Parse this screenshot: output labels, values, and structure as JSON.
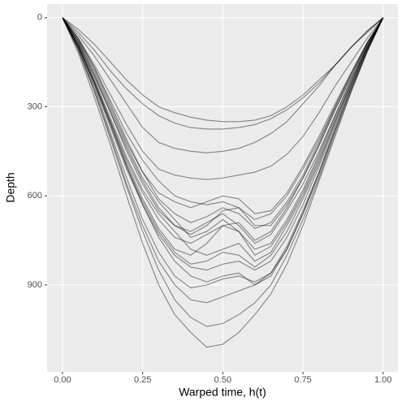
{
  "chart_data": {
    "type": "line",
    "x_label": "Warped time, h(t)",
    "y_label": "Depth",
    "x": [
      0,
      0.05,
      0.1,
      0.15,
      0.2,
      0.25,
      0.3,
      0.35,
      0.4,
      0.45,
      0.5,
      0.55,
      0.6,
      0.65,
      0.7,
      0.75,
      0.8,
      0.85,
      0.9,
      0.95,
      1
    ],
    "xlim": [
      -0.048,
      1.046
    ],
    "xticks": [
      {
        "value": 0,
        "label": "0.00"
      },
      {
        "value": 0.25,
        "label": "0.25"
      },
      {
        "value": 0.5,
        "label": "0.50"
      },
      {
        "value": 0.75,
        "label": "0.75"
      },
      {
        "value": 1,
        "label": "1.00"
      }
    ],
    "ylim": [
      -46,
      1193
    ],
    "y_reversed": true,
    "yticks": [
      0,
      300,
      600,
      900
    ],
    "grid": true,
    "color": "#000000",
    "opacity": 0.45,
    "series": [
      {
        "values": [
          0,
          40,
          90,
          150,
          210,
          260,
          300,
          320,
          335,
          345,
          350,
          350,
          345,
          330,
          300,
          260,
          210,
          160,
          100,
          50,
          0
        ]
      },
      {
        "values": [
          0,
          50,
          110,
          180,
          240,
          290,
          330,
          355,
          370,
          375,
          375,
          370,
          360,
          340,
          310,
          270,
          220,
          160,
          100,
          45,
          0
        ]
      },
      {
        "values": [
          0,
          60,
          130,
          210,
          290,
          370,
          420,
          440,
          450,
          455,
          450,
          440,
          420,
          390,
          350,
          290,
          230,
          160,
          100,
          45,
          0
        ]
      },
      {
        "values": [
          0,
          70,
          160,
          260,
          360,
          450,
          510,
          530,
          540,
          545,
          540,
          530,
          520,
          500,
          460,
          400,
          320,
          230,
          150,
          70,
          0
        ]
      },
      {
        "values": [
          0,
          90,
          200,
          320,
          450,
          560,
          650,
          700,
          720,
          690,
          660,
          700,
          760,
          730,
          650,
          560,
          450,
          330,
          210,
          100,
          0
        ]
      },
      {
        "values": [
          0,
          80,
          190,
          310,
          430,
          540,
          620,
          680,
          740,
          720,
          680,
          720,
          800,
          770,
          690,
          590,
          470,
          340,
          220,
          100,
          0
        ]
      },
      {
        "values": [
          0,
          100,
          220,
          350,
          480,
          590,
          680,
          740,
          760,
          730,
          700,
          690,
          750,
          720,
          640,
          540,
          430,
          310,
          200,
          90,
          0
        ]
      },
      {
        "values": [
          0,
          70,
          170,
          290,
          410,
          520,
          610,
          660,
          690,
          670,
          640,
          660,
          710,
          690,
          620,
          530,
          420,
          300,
          190,
          85,
          0
        ]
      },
      {
        "values": [
          0,
          90,
          210,
          340,
          470,
          580,
          660,
          720,
          780,
          800,
          780,
          760,
          820,
          790,
          700,
          600,
          480,
          350,
          220,
          100,
          0
        ]
      },
      {
        "values": [
          0,
          100,
          230,
          370,
          510,
          630,
          730,
          800,
          840,
          850,
          830,
          820,
          850,
          820,
          740,
          630,
          500,
          360,
          230,
          105,
          0
        ]
      },
      {
        "values": [
          0,
          110,
          250,
          400,
          560,
          700,
          820,
          900,
          950,
          960,
          940,
          920,
          900,
          860,
          780,
          660,
          530,
          380,
          240,
          110,
          0
        ]
      },
      {
        "values": [
          0,
          120,
          270,
          430,
          600,
          760,
          900,
          1000,
          1060,
          1110,
          1100,
          1060,
          1000,
          930,
          830,
          700,
          550,
          400,
          250,
          115,
          0
        ]
      },
      {
        "values": [
          0,
          110,
          250,
          410,
          570,
          720,
          850,
          950,
          1010,
          1040,
          1030,
          1000,
          960,
          900,
          800,
          680,
          540,
          390,
          250,
          115,
          0
        ]
      },
      {
        "values": [
          0,
          95,
          220,
          360,
          500,
          630,
          740,
          820,
          870,
          890,
          870,
          860,
          900,
          870,
          780,
          660,
          520,
          380,
          240,
          110,
          0
        ]
      },
      {
        "values": [
          0,
          85,
          195,
          320,
          440,
          550,
          640,
          700,
          730,
          700,
          650,
          640,
          700,
          700,
          630,
          540,
          430,
          310,
          200,
          90,
          0
        ]
      },
      {
        "values": [
          0,
          80,
          180,
          300,
          420,
          520,
          590,
          620,
          640,
          620,
          600,
          610,
          660,
          650,
          590,
          500,
          400,
          290,
          185,
          85,
          0
        ]
      },
      {
        "values": [
          0,
          95,
          215,
          350,
          490,
          610,
          710,
          780,
          800,
          760,
          700,
          720,
          780,
          760,
          680,
          580,
          460,
          330,
          210,
          95,
          0
        ]
      },
      {
        "values": [
          0,
          100,
          225,
          360,
          500,
          620,
          720,
          790,
          830,
          820,
          790,
          800,
          840,
          800,
          720,
          610,
          490,
          350,
          225,
          100,
          0
        ]
      },
      {
        "values": [
          0,
          75,
          170,
          280,
          390,
          480,
          550,
          600,
          620,
          630,
          620,
          640,
          680,
          660,
          600,
          510,
          410,
          300,
          190,
          85,
          0
        ]
      },
      {
        "values": [
          0,
          105,
          240,
          390,
          540,
          680,
          790,
          870,
          910,
          900,
          880,
          870,
          890,
          860,
          770,
          650,
          520,
          370,
          235,
          108,
          0
        ]
      }
    ]
  }
}
